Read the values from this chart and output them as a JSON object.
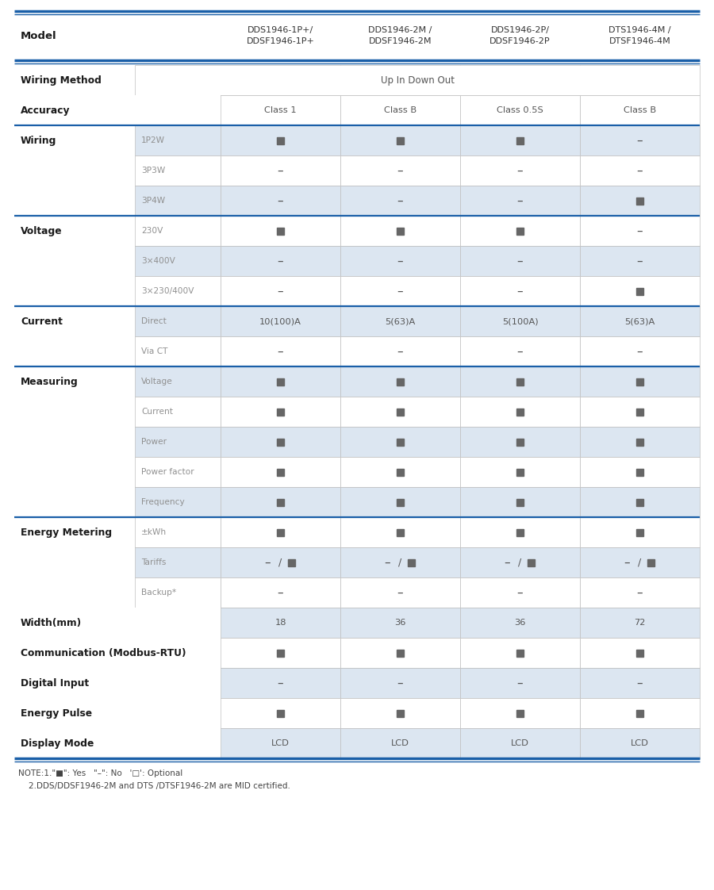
{
  "bg_color": "#ffffff",
  "cell_bg_shaded": "#dce6f1",
  "cell_bg_white": "#ffffff",
  "blue": "#1a5fa8",
  "grid": "#c0c0c0",
  "text_dark": "#1a1a1a",
  "text_mid": "#555555",
  "text_light": "#909090",
  "col_headers": [
    "DDS1946-1P+/\nDDSF1946-1P+",
    "DDS1946-2M /\nDDSF1946-2M",
    "DDS1946-2P/\nDDSF1946-2P",
    "DTS1946-4M /\nDTSF1946-4M"
  ],
  "rows": [
    {
      "section": "Wiring Method",
      "sub": null,
      "shaded": false,
      "type": "span",
      "v": [
        "Up In Down Out",
        "",
        "",
        ""
      ]
    },
    {
      "section": "Accuracy",
      "sub": null,
      "shaded": false,
      "type": "text",
      "v": [
        "Class 1",
        "Class B",
        "Class 0.5S",
        "Class B"
      ]
    },
    {
      "section": "Wiring",
      "sub": "1P2W",
      "shaded": true,
      "type": "sym",
      "v": [
        "Y",
        "Y",
        "Y",
        "N"
      ]
    },
    {
      "section": "",
      "sub": "3P3W",
      "shaded": false,
      "type": "sym",
      "v": [
        "N",
        "N",
        "N",
        "N"
      ]
    },
    {
      "section": "",
      "sub": "3P4W",
      "shaded": true,
      "type": "sym",
      "v": [
        "N",
        "N",
        "N",
        "Y"
      ]
    },
    {
      "section": "Voltage",
      "sub": "230V",
      "shaded": false,
      "type": "sym",
      "v": [
        "Y",
        "Y",
        "Y",
        "N"
      ]
    },
    {
      "section": "",
      "sub": "3×400V",
      "shaded": true,
      "type": "sym",
      "v": [
        "N",
        "N",
        "N",
        "N"
      ]
    },
    {
      "section": "",
      "sub": "3×230/400V",
      "shaded": false,
      "type": "sym",
      "v": [
        "N",
        "N",
        "N",
        "Y"
      ]
    },
    {
      "section": "Current",
      "sub": "Direct",
      "shaded": true,
      "type": "text",
      "v": [
        "10(100)A",
        "5(63)A",
        "5(100A)",
        "5(63)A"
      ]
    },
    {
      "section": "",
      "sub": "Via CT",
      "shaded": false,
      "type": "sym",
      "v": [
        "N",
        "N",
        "N",
        "N"
      ]
    },
    {
      "section": "Measuring",
      "sub": "Voltage",
      "shaded": true,
      "type": "sym",
      "v": [
        "Y",
        "Y",
        "Y",
        "Y"
      ]
    },
    {
      "section": "",
      "sub": "Current",
      "shaded": false,
      "type": "sym",
      "v": [
        "Y",
        "Y",
        "Y",
        "Y"
      ]
    },
    {
      "section": "",
      "sub": "Power",
      "shaded": true,
      "type": "sym",
      "v": [
        "Y",
        "Y",
        "Y",
        "Y"
      ]
    },
    {
      "section": "",
      "sub": "Power factor",
      "shaded": false,
      "type": "sym",
      "v": [
        "Y",
        "Y",
        "Y",
        "Y"
      ]
    },
    {
      "section": "",
      "sub": "Frequency",
      "shaded": true,
      "type": "sym",
      "v": [
        "Y",
        "Y",
        "Y",
        "Y"
      ]
    },
    {
      "section": "Energy Metering",
      "sub": "±kWh",
      "shaded": false,
      "type": "sym",
      "v": [
        "Y",
        "Y",
        "Y",
        "Y"
      ]
    },
    {
      "section": "",
      "sub": "Tariffs",
      "shaded": true,
      "type": "tariff",
      "v": [
        "T",
        "T",
        "T",
        "T"
      ]
    },
    {
      "section": "",
      "sub": "Backup*",
      "shaded": false,
      "type": "sym",
      "v": [
        "N",
        "N",
        "N",
        "N"
      ]
    },
    {
      "section": "Width(mm)",
      "sub": null,
      "shaded": true,
      "type": "text",
      "v": [
        "18",
        "36",
        "36",
        "72"
      ]
    },
    {
      "section": "Communication (Modbus-RTU)",
      "sub": null,
      "shaded": false,
      "type": "sym",
      "v": [
        "Y",
        "Y",
        "Y",
        "Y"
      ]
    },
    {
      "section": "Digital Input",
      "sub": null,
      "shaded": true,
      "type": "sym",
      "v": [
        "N",
        "N",
        "N",
        "N"
      ]
    },
    {
      "section": "Energy Pulse",
      "sub": null,
      "shaded": false,
      "type": "sym",
      "v": [
        "Y",
        "Y",
        "Y",
        "Y"
      ]
    },
    {
      "section": "Display Mode",
      "sub": null,
      "shaded": true,
      "type": "text",
      "v": [
        "LCD",
        "LCD",
        "LCD",
        "LCD"
      ]
    }
  ],
  "blue_before": [
    "Wiring",
    "Voltage",
    "Current",
    "Measuring",
    "Energy Metering"
  ],
  "note1": "NOTE:1.\"■\": Yes   \"–\": No   '□': Optional",
  "note2": "    2.DDS/DDSF1946-2M and DTS /DTSF1946-2M are MID certified."
}
